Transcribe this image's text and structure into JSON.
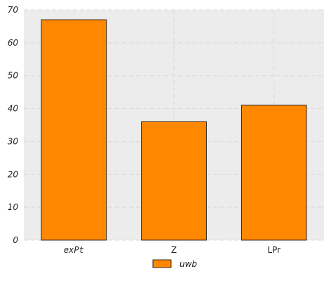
{
  "chart_data": {
    "type": "bar",
    "categories": [
      "exPt",
      "Z",
      "LPr"
    ],
    "series": [
      {
        "name": "uwb",
        "values": [
          67,
          36,
          41
        ]
      }
    ],
    "title": "",
    "xlabel": "",
    "ylabel": "",
    "ylim": [
      0,
      70
    ],
    "yticks": [
      0,
      10,
      20,
      30,
      40,
      50,
      60,
      70
    ],
    "grid": true,
    "legend": "bottom-center",
    "colors": {
      "bar": "#ff8800",
      "bar_edge": "#000000",
      "plot_background": "#ececec",
      "grid": "#d9d9d9"
    }
  }
}
